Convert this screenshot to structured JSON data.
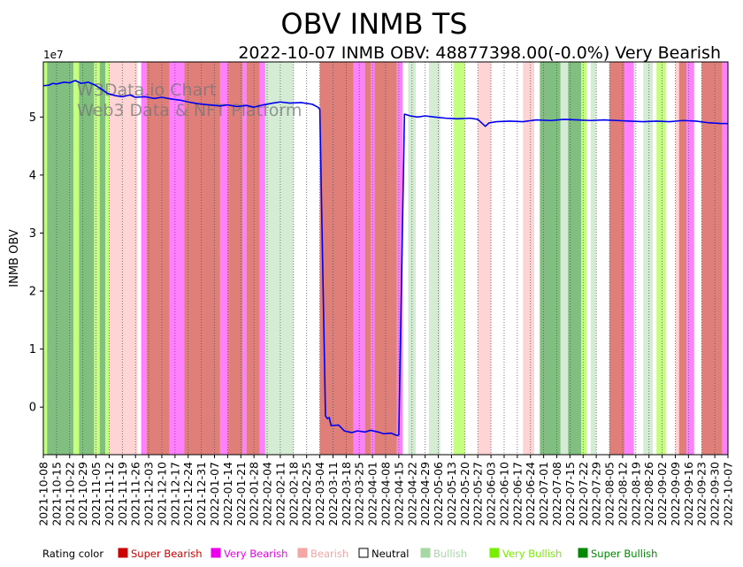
{
  "chart_data": {
    "type": "line",
    "title": "OBV INMB TS",
    "subtitle": "2022-10-07 INMB OBV: 48877398.00(-0.0%) Very Bearish",
    "ylabel": "INMB OBV",
    "y_multiplier_label": "1e7",
    "ylim": [
      -8200000,
      59500000
    ],
    "yticks": [
      0,
      10000000,
      20000000,
      30000000,
      40000000,
      50000000
    ],
    "ytick_labels": [
      "0",
      "1",
      "2",
      "3",
      "4",
      "5"
    ],
    "x_start": "2021-10-08",
    "x_end": "2022-10-07",
    "xtick_labels": [
      "2021-10-08",
      "2021-10-15",
      "2021-10-22",
      "2021-10-29",
      "2021-11-05",
      "2021-11-12",
      "2021-11-19",
      "2021-11-26",
      "2021-12-03",
      "2021-12-10",
      "2021-12-17",
      "2021-12-24",
      "2021-12-31",
      "2022-01-07",
      "2022-01-14",
      "2022-01-21",
      "2022-01-28",
      "2022-02-04",
      "2022-02-11",
      "2022-02-18",
      "2022-02-25",
      "2022-03-04",
      "2022-03-11",
      "2022-03-18",
      "2022-03-25",
      "2022-04-01",
      "2022-04-08",
      "2022-04-15",
      "2022-04-22",
      "2022-04-29",
      "2022-05-06",
      "2022-05-13",
      "2022-05-20",
      "2022-05-27",
      "2022-06-03",
      "2022-06-10",
      "2022-06-17",
      "2022-06-24",
      "2022-07-01",
      "2022-07-08",
      "2022-07-15",
      "2022-07-22",
      "2022-07-29",
      "2022-08-05",
      "2022-08-12",
      "2022-08-19",
      "2022-08-26",
      "2022-09-02",
      "2022-09-09",
      "2022-09-16",
      "2022-09-23",
      "2022-09-30",
      "2022-10-07"
    ],
    "series": [
      {
        "name": "INMB OBV",
        "color": "#0000ee",
        "points": [
          [
            "2021-10-08",
            55400000
          ],
          [
            "2021-10-11",
            55500000
          ],
          [
            "2021-10-13",
            55800000
          ],
          [
            "2021-10-15",
            55700000
          ],
          [
            "2021-10-19",
            56000000
          ],
          [
            "2021-10-22",
            55900000
          ],
          [
            "2021-10-25",
            56300000
          ],
          [
            "2021-10-28",
            55800000
          ],
          [
            "2021-11-01",
            56000000
          ],
          [
            "2021-11-04",
            55600000
          ],
          [
            "2021-11-08",
            54800000
          ],
          [
            "2021-11-11",
            54100000
          ],
          [
            "2021-11-15",
            53700000
          ],
          [
            "2021-11-19",
            53500000
          ],
          [
            "2021-11-23",
            53800000
          ],
          [
            "2021-11-26",
            53400000
          ],
          [
            "2021-12-01",
            53500000
          ],
          [
            "2021-12-06",
            53200000
          ],
          [
            "2021-12-10",
            53400000
          ],
          [
            "2021-12-15",
            53100000
          ],
          [
            "2021-12-20",
            52900000
          ],
          [
            "2021-12-24",
            52600000
          ],
          [
            "2021-12-29",
            52300000
          ],
          [
            "2022-01-04",
            52100000
          ],
          [
            "2022-01-10",
            51900000
          ],
          [
            "2022-01-14",
            52100000
          ],
          [
            "2022-01-19",
            51800000
          ],
          [
            "2022-01-24",
            52000000
          ],
          [
            "2022-01-28",
            51700000
          ],
          [
            "2022-02-02",
            52100000
          ],
          [
            "2022-02-07",
            52400000
          ],
          [
            "2022-02-11",
            52600000
          ],
          [
            "2022-02-16",
            52400000
          ],
          [
            "2022-02-22",
            52500000
          ],
          [
            "2022-02-28",
            52200000
          ],
          [
            "2022-03-03",
            51700000
          ],
          [
            "2022-03-04",
            51300000
          ],
          [
            "2022-03-07",
            -1500000
          ],
          [
            "2022-03-08",
            -2000000
          ],
          [
            "2022-03-09",
            -1800000
          ],
          [
            "2022-03-10",
            -3200000
          ],
          [
            "2022-03-14",
            -3100000
          ],
          [
            "2022-03-17",
            -4100000
          ],
          [
            "2022-03-21",
            -4400000
          ],
          [
            "2022-03-24",
            -4100000
          ],
          [
            "2022-03-28",
            -4300000
          ],
          [
            "2022-03-31",
            -4000000
          ],
          [
            "2022-04-04",
            -4300000
          ],
          [
            "2022-04-07",
            -4600000
          ],
          [
            "2022-04-11",
            -4500000
          ],
          [
            "2022-04-14",
            -4900000
          ],
          [
            "2022-04-15",
            -4800000
          ],
          [
            "2022-04-18",
            50500000
          ],
          [
            "2022-04-21",
            50200000
          ],
          [
            "2022-04-25",
            50000000
          ],
          [
            "2022-04-29",
            50200000
          ],
          [
            "2022-05-04",
            50000000
          ],
          [
            "2022-05-10",
            49800000
          ],
          [
            "2022-05-16",
            49700000
          ],
          [
            "2022-05-23",
            49800000
          ],
          [
            "2022-05-27",
            49600000
          ],
          [
            "2022-05-31",
            48400000
          ],
          [
            "2022-06-02",
            49000000
          ],
          [
            "2022-06-06",
            49200000
          ],
          [
            "2022-06-13",
            49300000
          ],
          [
            "2022-06-20",
            49200000
          ],
          [
            "2022-06-27",
            49500000
          ],
          [
            "2022-07-05",
            49400000
          ],
          [
            "2022-07-12",
            49600000
          ],
          [
            "2022-07-19",
            49500000
          ],
          [
            "2022-07-26",
            49400000
          ],
          [
            "2022-08-02",
            49500000
          ],
          [
            "2022-08-09",
            49400000
          ],
          [
            "2022-08-16",
            49300000
          ],
          [
            "2022-08-23",
            49200000
          ],
          [
            "2022-08-30",
            49300000
          ],
          [
            "2022-09-06",
            49200000
          ],
          [
            "2022-09-13",
            49400000
          ],
          [
            "2022-09-20",
            49300000
          ],
          [
            "2022-09-27",
            49000000
          ],
          [
            "2022-10-03",
            48900000
          ],
          [
            "2022-10-07",
            48877398
          ]
        ]
      }
    ],
    "rating_bands": [
      [
        "2021-10-08",
        "2021-10-10",
        "Very Bullish"
      ],
      [
        "2021-10-10",
        "2021-10-24",
        "Super Bullish"
      ],
      [
        "2021-10-24",
        "2021-10-27",
        "Very Bullish"
      ],
      [
        "2021-10-27",
        "2021-11-04",
        "Super Bullish"
      ],
      [
        "2021-11-04",
        "2021-11-07",
        "Very Bullish"
      ],
      [
        "2021-11-07",
        "2021-11-10",
        "Super Bullish"
      ],
      [
        "2021-11-10",
        "2021-11-12",
        "Very Bullish"
      ],
      [
        "2021-11-12",
        "2021-11-27",
        "Bearish"
      ],
      [
        "2021-11-29",
        "2021-12-02",
        "Very Bearish"
      ],
      [
        "2021-12-02",
        "2021-12-14",
        "Super Bearish"
      ],
      [
        "2021-12-14",
        "2021-12-22",
        "Very Bearish"
      ],
      [
        "2021-12-22",
        "2022-01-10",
        "Super Bearish"
      ],
      [
        "2022-01-10",
        "2022-01-14",
        "Very Bearish"
      ],
      [
        "2022-01-14",
        "2022-01-22",
        "Super Bearish"
      ],
      [
        "2022-01-22",
        "2022-01-24",
        "Very Bearish"
      ],
      [
        "2022-01-24",
        "2022-01-31",
        "Super Bearish"
      ],
      [
        "2022-01-31",
        "2022-02-03",
        "Very Bearish"
      ],
      [
        "2022-02-03",
        "2022-02-18",
        "Bullish"
      ],
      [
        "2022-03-04",
        "2022-03-22",
        "Super Bearish"
      ],
      [
        "2022-03-22",
        "2022-03-28",
        "Very Bearish"
      ],
      [
        "2022-03-28",
        "2022-03-31",
        "Super Bearish"
      ],
      [
        "2022-03-31",
        "2022-04-02",
        "Very Bearish"
      ],
      [
        "2022-04-02",
        "2022-04-14",
        "Super Bearish"
      ],
      [
        "2022-04-14",
        "2022-04-17",
        "Very Bearish"
      ],
      [
        "2022-04-20",
        "2022-04-24",
        "Bullish"
      ],
      [
        "2022-05-01",
        "2022-05-07",
        "Bullish"
      ],
      [
        "2022-05-14",
        "2022-05-20",
        "Very Bullish"
      ],
      [
        "2022-05-27",
        "2022-06-03",
        "Bearish"
      ],
      [
        "2022-06-20",
        "2022-06-26",
        "Bearish"
      ],
      [
        "2022-06-29",
        "2022-07-10",
        "Super Bullish"
      ],
      [
        "2022-07-10",
        "2022-07-14",
        "Bullish"
      ],
      [
        "2022-07-14",
        "2022-07-21",
        "Super Bullish"
      ],
      [
        "2022-07-21",
        "2022-07-24",
        "Very Bullish"
      ],
      [
        "2022-07-26",
        "2022-07-29",
        "Bullish"
      ],
      [
        "2022-08-05",
        "2022-08-13",
        "Super Bearish"
      ],
      [
        "2022-08-13",
        "2022-08-18",
        "Very Bearish"
      ],
      [
        "2022-08-23",
        "2022-08-28",
        "Bullish"
      ],
      [
        "2022-08-30",
        "2022-09-04",
        "Very Bullish"
      ],
      [
        "2022-09-09",
        "2022-09-11",
        "Bearish"
      ],
      [
        "2022-09-11",
        "2022-09-15",
        "Super Bearish"
      ],
      [
        "2022-09-15",
        "2022-09-19",
        "Very Bearish"
      ],
      [
        "2022-09-23",
        "2022-10-04",
        "Super Bearish"
      ],
      [
        "2022-10-04",
        "2022-10-07",
        "Very Bearish"
      ]
    ],
    "legend": {
      "title": "Rating color",
      "entries": [
        {
          "label": "Super Bearish",
          "color": "#cc0000"
        },
        {
          "label": "Very Bearish",
          "color": "#ee00ee"
        },
        {
          "label": "Bearish",
          "color": "#f4a6a6"
        },
        {
          "label": "Neutral",
          "color": "#ffffff"
        },
        {
          "label": "Bullish",
          "color": "#a6d8a6"
        },
        {
          "label": "Very Bullish",
          "color": "#77ee00"
        },
        {
          "label": "Super Bullish",
          "color": "#008800"
        }
      ]
    },
    "band_colors": {
      "Super Bearish": "#e07e7a",
      "Very Bearish": "#ff80ff",
      "Bearish": "#ffd4d4",
      "Bullish": "#d4ecd4",
      "Very Bullish": "#c4ff80",
      "Super Bullish": "#80bf80"
    },
    "watermark": [
      "W3Data.io Chart",
      "Web3 Data & NFT Platform"
    ]
  }
}
